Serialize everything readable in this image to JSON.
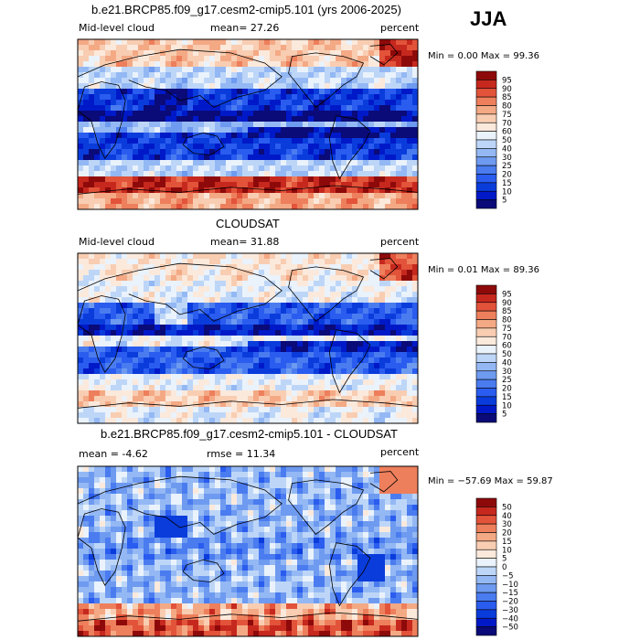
{
  "season": "JJA",
  "colors": {
    "abs_scale": [
      "#0a0a78",
      "#0019c8",
      "#0a3cdc",
      "#2a5cef",
      "#4a7cf0",
      "#6e9af0",
      "#94b8f4",
      "#bdd6f8",
      "#eaf2fb",
      "#fbe9dc",
      "#f8cdb2",
      "#f4a985",
      "#ee7f5c",
      "#e2533a",
      "#c6281e",
      "#8e0a0a"
    ],
    "diff_scale": [
      "#0a0a78",
      "#0019c8",
      "#0a3cdc",
      "#2a5cef",
      "#4a7cf0",
      "#6e9af0",
      "#94b8f4",
      "#bdd6f8",
      "#eaf2fb",
      "#fbe9dc",
      "#f8cdb2",
      "#f4a985",
      "#ee7f5c",
      "#e2533a",
      "#c6281e",
      "#8e0a0a"
    ]
  },
  "panels": [
    {
      "title": "b.e21.BRCP85.f09_g17.cesm2-cmip5.101 (yrs 2006-2025)",
      "left_label": "Mid-level cloud",
      "mean_label": "mean=  27.26",
      "units": "percent",
      "minmax": "Min =    0.00 Max =   99.36"
    },
    {
      "title": "CLOUDSAT",
      "left_label": "Mid-level cloud",
      "mean_label": "mean=  31.88",
      "units": "percent",
      "minmax": "Min =    0.01 Max =   89.36"
    },
    {
      "title": "b.e21.BRCP85.f09_g17.cesm2-cmip5.101 - CLOUDSAT",
      "left_label": "mean =   -4.62",
      "mean_label": "rmse =   11.34",
      "units": "percent",
      "minmax": "Min = −57.69 Max =   59.87"
    }
  ],
  "chart_data": [
    {
      "type": "heatmap",
      "map": "global cylindrical equidistant",
      "variable": "Mid-level cloud",
      "units": "percent",
      "mean": 27.26,
      "min": 0.0,
      "max": 99.36,
      "colorbar_levels": [
        95,
        90,
        85,
        80,
        75,
        70,
        60,
        50,
        40,
        30,
        25,
        20,
        15,
        10,
        5
      ]
    },
    {
      "type": "heatmap",
      "map": "global cylindrical equidistant",
      "variable": "Mid-level cloud",
      "units": "percent",
      "mean": 31.88,
      "min": 0.01,
      "max": 89.36,
      "colorbar_levels": [
        95,
        90,
        85,
        80,
        75,
        70,
        60,
        50,
        40,
        30,
        25,
        20,
        15,
        10,
        5
      ]
    },
    {
      "type": "heatmap",
      "map": "global cylindrical equidistant",
      "variable": "difference",
      "units": "percent",
      "mean": -4.62,
      "rmse": 11.34,
      "min": -57.69,
      "max": 59.87,
      "colorbar_levels": [
        50,
        40,
        30,
        20,
        15,
        10,
        5,
        0,
        -5,
        -10,
        -15,
        -20,
        -30,
        -40,
        -50
      ]
    }
  ]
}
